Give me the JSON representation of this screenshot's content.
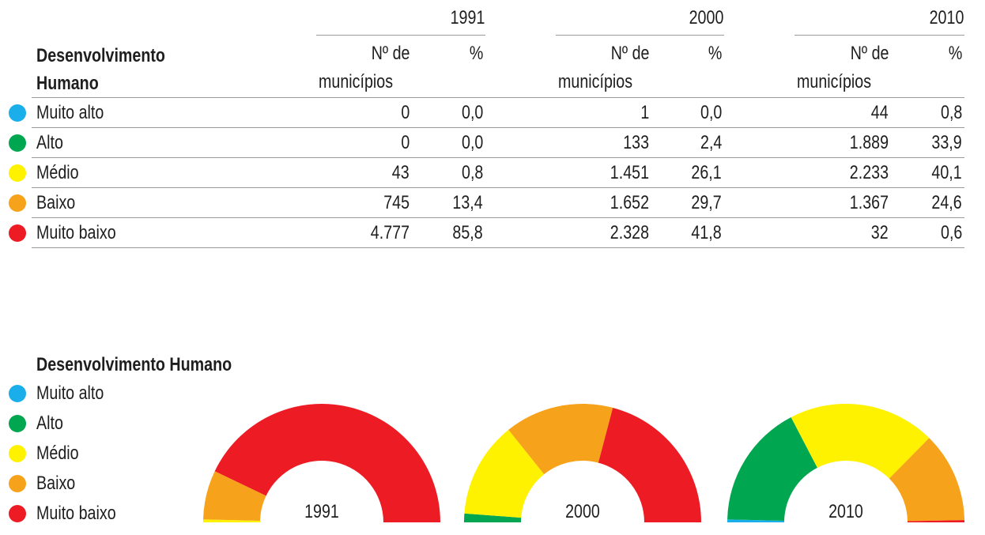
{
  "table": {
    "row_header": [
      "Desenvolvimento",
      "Humano"
    ],
    "years": [
      "1991",
      "2000",
      "2010"
    ],
    "col_count_label": [
      "Nº de",
      "municípios"
    ],
    "col_pct_label": "%",
    "rows": [
      {
        "label": "Muito alto",
        "color": "#1aaeea",
        "values": [
          [
            "0",
            "0,0"
          ],
          [
            "1",
            "0,0"
          ],
          [
            "44",
            "0,8"
          ]
        ]
      },
      {
        "label": "Alto",
        "color": "#00a650",
        "values": [
          [
            "0",
            "0,0"
          ],
          [
            "133",
            "2,4"
          ],
          [
            "1.889",
            "33,9"
          ]
        ]
      },
      {
        "label": "Médio",
        "color": "#fff200",
        "values": [
          [
            "43",
            "0,8"
          ],
          [
            "1.451",
            "26,1"
          ],
          [
            "2.233",
            "40,1"
          ]
        ]
      },
      {
        "label": "Baixo",
        "color": "#f7a21b",
        "values": [
          [
            "745",
            "13,4"
          ],
          [
            "1.652",
            "29,7"
          ],
          [
            "1.367",
            "24,6"
          ]
        ]
      },
      {
        "label": "Muito baixo",
        "color": "#ed1c24",
        "values": [
          [
            "4.777",
            "85,8"
          ],
          [
            "2.328",
            "41,8"
          ],
          [
            "32",
            "0,6"
          ]
        ]
      }
    ]
  },
  "legend": {
    "title": "Desenvolvimento Humano",
    "items": [
      {
        "label": "Muito alto",
        "color": "#1aaeea"
      },
      {
        "label": "Alto",
        "color": "#00a650"
      },
      {
        "label": "Médio",
        "color": "#fff200"
      },
      {
        "label": "Baixo",
        "color": "#f7a21b"
      },
      {
        "label": "Muito baixo",
        "color": "#ed1c24"
      }
    ]
  },
  "chart_data": {
    "type": "pie",
    "variant": "semicircle-donut",
    "categories": [
      "Muito alto",
      "Alto",
      "Médio",
      "Baixo",
      "Muito baixo"
    ],
    "colors": [
      "#1aaeea",
      "#00a650",
      "#fff200",
      "#f7a21b",
      "#ed1c24"
    ],
    "series": [
      {
        "name": "1991",
        "values": [
          0.0,
          0.0,
          0.8,
          13.4,
          85.8
        ]
      },
      {
        "name": "2000",
        "values": [
          0.0,
          2.4,
          26.1,
          29.7,
          41.8
        ]
      },
      {
        "name": "2010",
        "values": [
          0.8,
          33.9,
          40.1,
          24.6,
          0.6
        ]
      }
    ]
  }
}
